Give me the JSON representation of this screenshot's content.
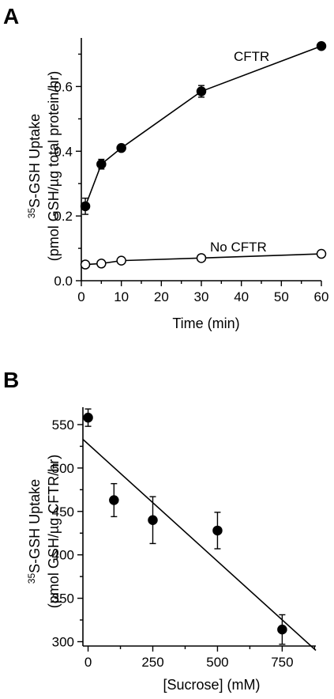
{
  "chart_data": [
    {
      "type": "line",
      "panel_label": "A",
      "xlabel": "Time (min)",
      "ylabel_line1": "S-GSH Uptake",
      "ylabel_sup": "35",
      "ylabel_line2": "(pmol GSH/µg total protein/hr)",
      "xlim": [
        0,
        60
      ],
      "ylim": [
        0,
        0.75
      ],
      "xticks": [
        0,
        10,
        20,
        30,
        40,
        50,
        60
      ],
      "xtick_labels": [
        "0",
        "10",
        "20",
        "30",
        "40",
        "50",
        "60"
      ],
      "yticks": [
        0,
        0.2,
        0.4,
        0.6
      ],
      "ytick_labels": [
        "0.0",
        "0.2",
        "0.4",
        "0.6"
      ],
      "grid": false,
      "series": [
        {
          "name": "CFTR",
          "marker": "filled-circle",
          "x": [
            1,
            5,
            10,
            30,
            60
          ],
          "y": [
            0.23,
            0.36,
            0.41,
            0.585,
            0.725
          ],
          "err": [
            0.025,
            0.015,
            0.01,
            0.018,
            0.01
          ]
        },
        {
          "name": "No CFTR",
          "marker": "open-circle",
          "x": [
            1,
            5,
            10,
            30,
            60
          ],
          "y": [
            0.05,
            0.053,
            0.062,
            0.07,
            0.083
          ],
          "err": [
            0,
            0,
            0,
            0,
            0
          ]
        }
      ]
    },
    {
      "type": "scatter",
      "panel_label": "B",
      "xlabel": "[Sucrose] (mM)",
      "ylabel_line1": "S-GSH Uptake",
      "ylabel_sup": "35",
      "ylabel_line2": "(pmol GSH/µg CFTR/hr)",
      "xlim": [
        -20,
        880
      ],
      "ylim": [
        295,
        570
      ],
      "xticks": [
        0,
        250,
        500,
        750
      ],
      "xtick_labels": [
        "0",
        "250",
        "500",
        "750"
      ],
      "yticks": [
        300,
        350,
        400,
        450,
        500,
        550
      ],
      "ytick_labels": [
        "300",
        "350",
        "400",
        "450",
        "500",
        "550"
      ],
      "grid": false,
      "points": {
        "x": [
          0,
          100,
          250,
          500,
          750
        ],
        "y": [
          558,
          463,
          440,
          428,
          314
        ],
        "err": [
          10,
          19,
          27,
          21,
          17
        ]
      },
      "fit_line": {
        "x": [
          -20,
          880
        ],
        "y": [
          533,
          290
        ]
      }
    }
  ]
}
